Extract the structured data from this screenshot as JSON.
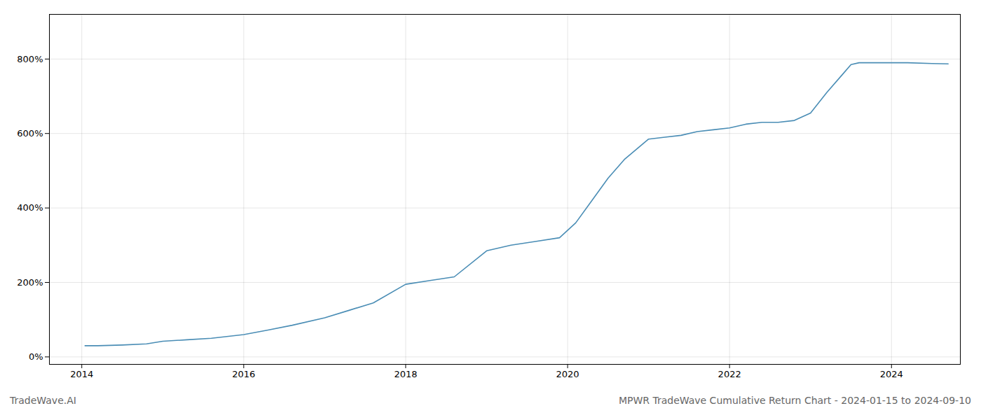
{
  "chart_data": {
    "type": "line",
    "title": "MPWR TradeWave Cumulative Return Chart - 2024-01-15 to 2024-09-10",
    "annotations": [
      "TradeWave.AI"
    ],
    "color": "#4a8db5",
    "grid": true,
    "x": [
      2014.04,
      2014.2,
      2014.5,
      2014.8,
      2015.0,
      2015.3,
      2015.6,
      2016.0,
      2016.3,
      2016.6,
      2017.0,
      2017.3,
      2017.6,
      2018.0,
      2018.3,
      2018.6,
      2019.0,
      2019.3,
      2019.6,
      2019.9,
      2020.1,
      2020.3,
      2020.5,
      2020.7,
      2021.0,
      2021.2,
      2021.4,
      2021.6,
      2021.8,
      2022.0,
      2022.2,
      2022.4,
      2022.6,
      2022.8,
      2023.0,
      2023.2,
      2023.4,
      2023.5,
      2023.6,
      2023.8,
      2024.0,
      2024.2,
      2024.5,
      2024.7
    ],
    "values": [
      0.3,
      0.3,
      0.32,
      0.35,
      0.42,
      0.46,
      0.5,
      0.6,
      0.72,
      0.85,
      1.05,
      1.25,
      1.45,
      1.95,
      2.05,
      2.15,
      2.85,
      3.0,
      3.1,
      3.2,
      3.6,
      4.2,
      4.8,
      5.3,
      5.85,
      5.9,
      5.95,
      6.05,
      6.1,
      6.15,
      6.25,
      6.3,
      6.3,
      6.35,
      6.55,
      7.1,
      7.6,
      7.85,
      7.9,
      7.9,
      7.9,
      7.9,
      7.88,
      7.87
    ],
    "xlim": [
      2013.6,
      2024.85
    ],
    "xticks": [
      2014,
      2016,
      2018,
      2020,
      2022,
      2024
    ],
    "ylim": [
      -0.2,
      9.2
    ],
    "yticks": [
      {
        "value": 0,
        "label": "0%"
      },
      {
        "value": 2,
        "label": "200%"
      },
      {
        "value": 4,
        "label": "400%"
      },
      {
        "value": 6,
        "label": "600%"
      },
      {
        "value": 8,
        "label": "800%"
      }
    ]
  }
}
